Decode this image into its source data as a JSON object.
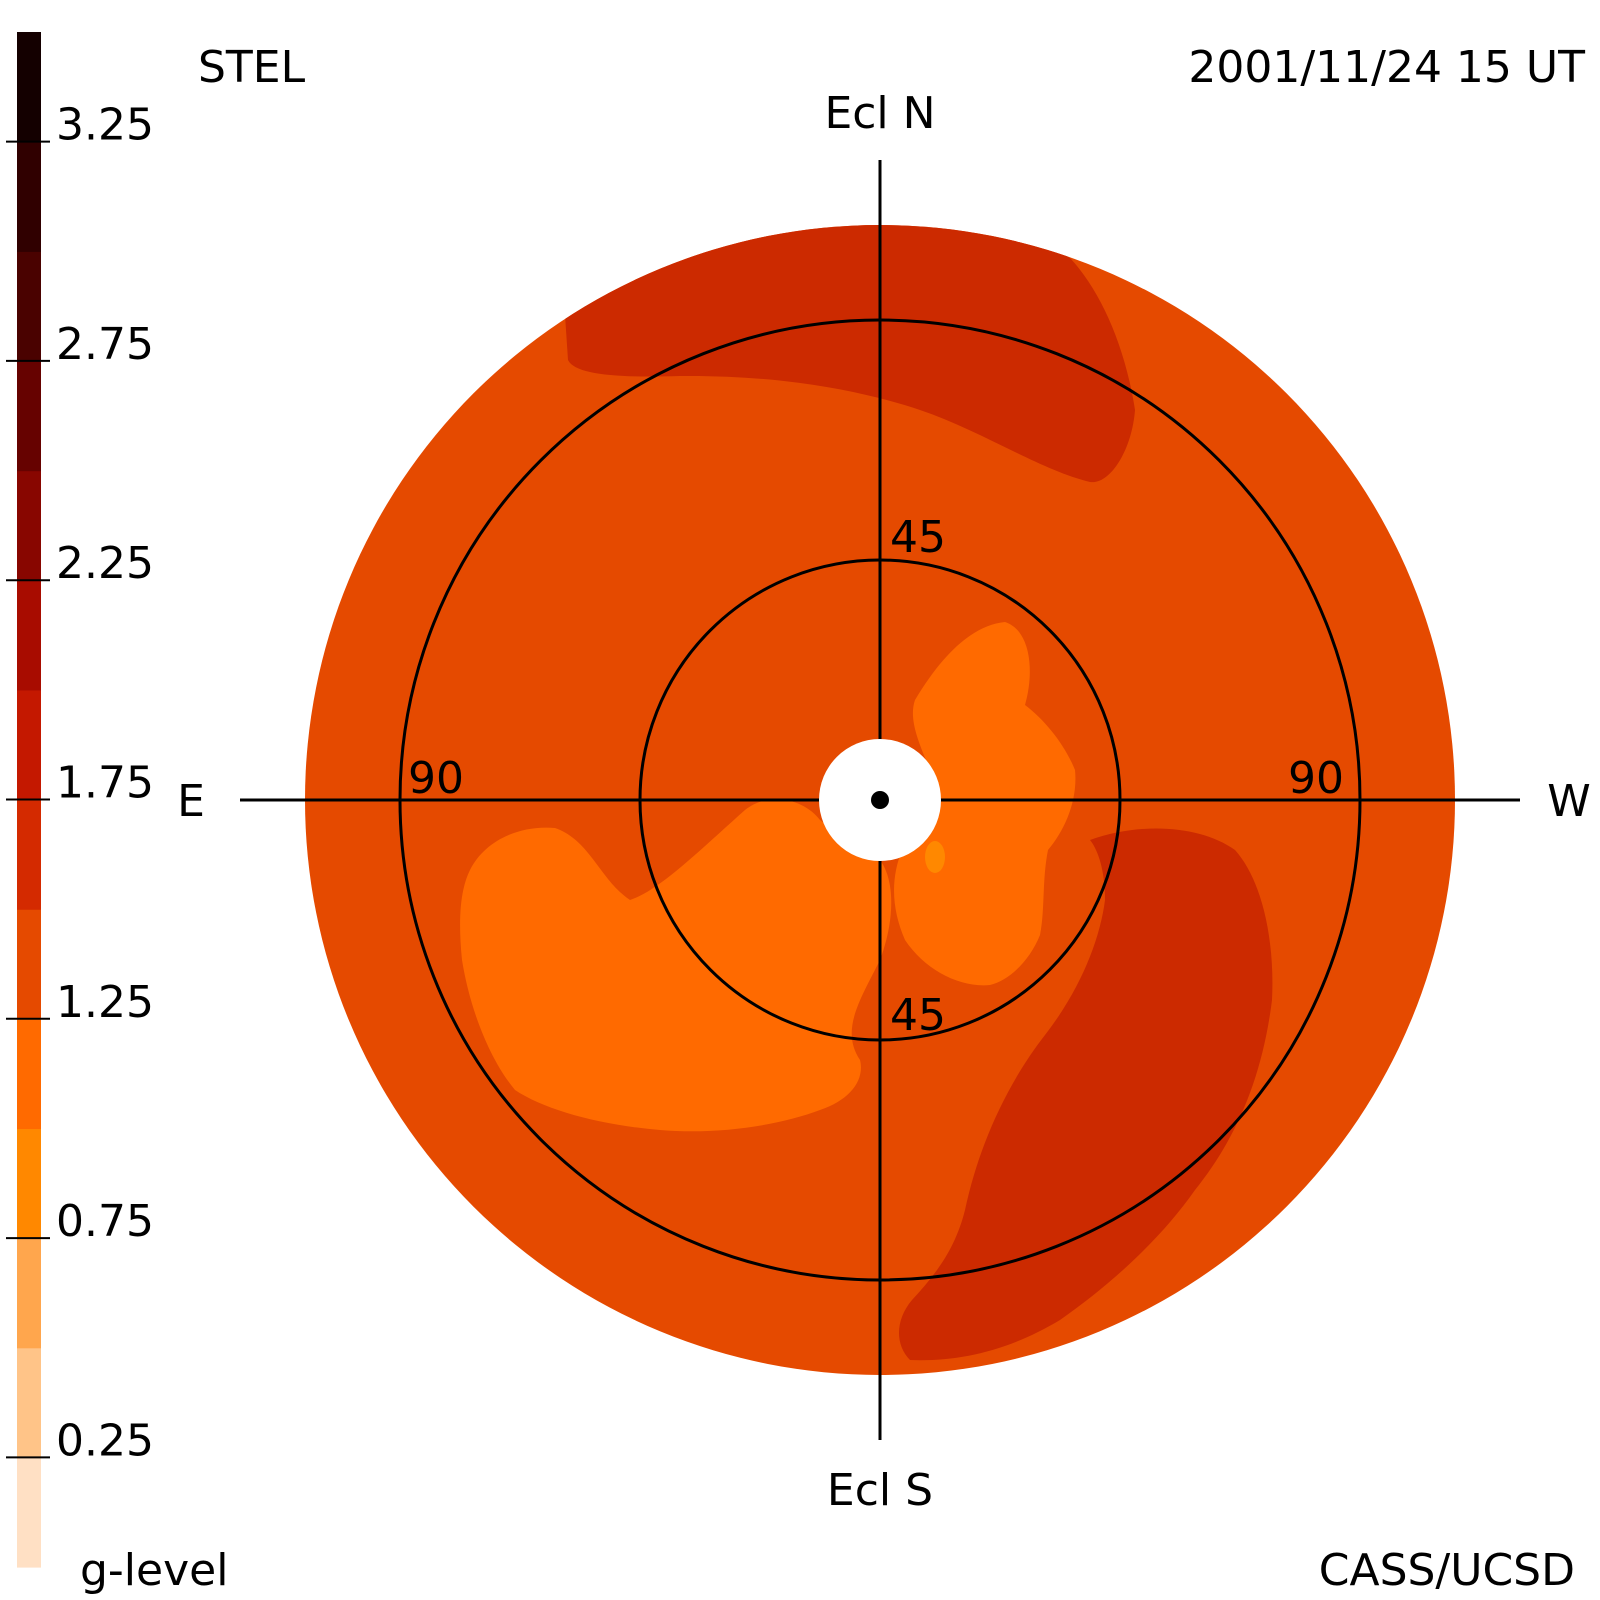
{
  "header": {
    "instrument": "STEL",
    "timestamp": "2001/11/24 15 UT",
    "credit": "CASS/UCSD"
  },
  "chart_data": {
    "type": "heatmap",
    "projection": "fisheye sky map centred on the Sun",
    "direction_labels": {
      "top": "Ecl N",
      "bottom": "Ecl S",
      "left": "E",
      "right": "W"
    },
    "elongation_rings": [
      {
        "deg": 45,
        "labels": [
          "45",
          "45"
        ]
      },
      {
        "deg": 90,
        "labels": [
          "90",
          "90"
        ]
      }
    ],
    "outer_limit_deg": 108,
    "colorbar": {
      "title": "g-level",
      "range": [
        0,
        3.5
      ],
      "tick_values": [
        0.25,
        0.75,
        1.25,
        1.75,
        2.25,
        2.75,
        3.25
      ],
      "tick_labels": [
        "0.25",
        "0.75",
        "1.25",
        "1.75",
        "2.25",
        "2.75",
        "3.25"
      ],
      "colors": [
        "#ffe0c4",
        "#ffc488",
        "#ffa64d",
        "#ff8800",
        "#ff6a00",
        "#e54a00",
        "#d42a00",
        "#c41800",
        "#a80c00",
        "#880600",
        "#660200",
        "#4a0200",
        "#300000",
        "#140000"
      ]
    },
    "g_level_regions": [
      {
        "label": "background",
        "g_level": 1.1,
        "color": "#e54a00"
      },
      {
        "label": "north high-g arc",
        "g_level": 1.5,
        "color": "#cc2a00"
      },
      {
        "label": "south-west high-g band",
        "g_level": 1.5,
        "color": "#cc2a00"
      },
      {
        "label": "south-east low-g lobe",
        "g_level": 0.85,
        "color": "#ff6a00"
      },
      {
        "label": "inner north-west low-g patch",
        "g_level": 0.85,
        "color": "#ff6a00"
      },
      {
        "label": "near-sun spot",
        "g_level": 0.6,
        "color": "#ff8800"
      }
    ]
  }
}
